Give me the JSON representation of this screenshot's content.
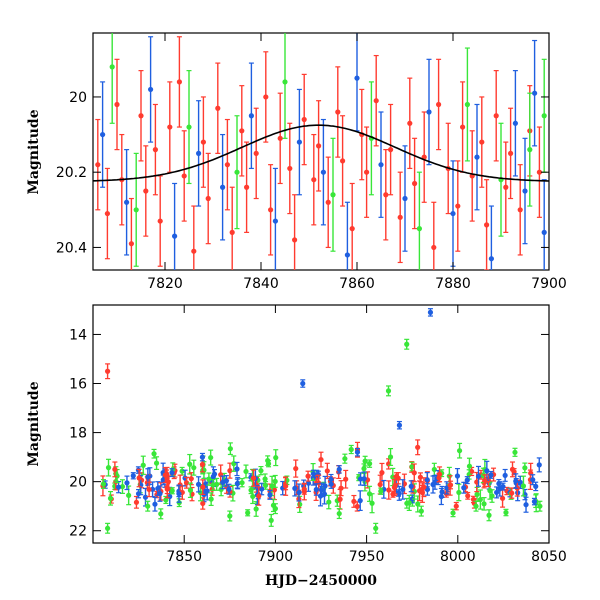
{
  "chart_data": [
    {
      "type": "scatter",
      "panel": "top",
      "xlabel": "",
      "ylabel": "Magnitude",
      "xlim": [
        7805,
        7900
      ],
      "ylim": [
        20.46,
        19.83
      ],
      "y_inverted": true,
      "x_ticks": [
        7820,
        7840,
        7860,
        7880,
        7900
      ],
      "x_tick_labels": [
        "7820",
        "7840",
        "7860",
        "7880",
        "7900"
      ],
      "y_ticks": [
        20.0,
        20.2,
        20.4
      ],
      "y_tick_labels": [
        "20",
        "20.2",
        "20.4"
      ],
      "colors": {
        "red": "#ff3b2f",
        "blue": "#1f5fe0",
        "green": "#39e639",
        "model": "#000000"
      },
      "model_curve": {
        "name": "",
        "type": "gaussian_dip",
        "baseline": 20.225,
        "peak_magnitude": 20.075,
        "peak_x": 7852,
        "sigma": 16
      },
      "series": [
        {
          "color": "red",
          "error_bar": 0.12,
          "points": [
            [
              7806,
              20.18
            ],
            [
              7808,
              20.31
            ],
            [
              7810,
              20.02
            ],
            [
              7811,
              20.22
            ],
            [
              7813,
              20.39
            ],
            [
              7815,
              20.05
            ],
            [
              7816,
              20.25
            ],
            [
              7818,
              20.14
            ],
            [
              7819,
              20.33
            ],
            [
              7821,
              20.08
            ],
            [
              7823,
              19.96
            ],
            [
              7824,
              20.21
            ],
            [
              7826,
              20.41
            ],
            [
              7828,
              20.12
            ],
            [
              7829,
              20.27
            ],
            [
              7831,
              20.03
            ],
            [
              7833,
              20.18
            ],
            [
              7834,
              20.36
            ],
            [
              7836,
              20.09
            ],
            [
              7837,
              20.24
            ],
            [
              7839,
              20.15
            ],
            [
              7841,
              20.0
            ],
            [
              7842,
              20.3
            ],
            [
              7844,
              20.11
            ],
            [
              7846,
              20.19
            ],
            [
              7847,
              20.38
            ],
            [
              7849,
              20.06
            ],
            [
              7851,
              20.22
            ],
            [
              7852,
              20.13
            ],
            [
              7854,
              20.28
            ],
            [
              7856,
              20.04
            ],
            [
              7857,
              20.17
            ],
            [
              7859,
              20.35
            ],
            [
              7861,
              20.1
            ],
            [
              7862,
              20.2
            ],
            [
              7864,
              20.01
            ],
            [
              7866,
              20.26
            ],
            [
              7867,
              20.14
            ],
            [
              7869,
              20.32
            ],
            [
              7871,
              20.07
            ],
            [
              7872,
              20.23
            ],
            [
              7874,
              20.16
            ],
            [
              7876,
              20.4
            ],
            [
              7877,
              20.02
            ],
            [
              7879,
              20.19
            ],
            [
              7881,
              20.29
            ],
            [
              7882,
              20.08
            ],
            [
              7884,
              20.21
            ],
            [
              7886,
              20.12
            ],
            [
              7887,
              20.34
            ],
            [
              7889,
              20.05
            ],
            [
              7891,
              20.24
            ],
            [
              7892,
              20.15
            ],
            [
              7894,
              20.3
            ],
            [
              7896,
              20.09
            ],
            [
              7898,
              20.2
            ]
          ]
        },
        {
          "color": "blue",
          "error_bar": 0.14,
          "points": [
            [
              7807,
              20.1
            ],
            [
              7812,
              20.28
            ],
            [
              7817,
              19.98
            ],
            [
              7822,
              20.37
            ],
            [
              7827,
              20.15
            ],
            [
              7832,
              20.24
            ],
            [
              7838,
              20.05
            ],
            [
              7843,
              20.33
            ],
            [
              7848,
              20.12
            ],
            [
              7853,
              20.2
            ],
            [
              7858,
              20.42
            ],
            [
              7860,
              19.95
            ],
            [
              7865,
              20.18
            ],
            [
              7870,
              20.27
            ],
            [
              7875,
              20.04
            ],
            [
              7880,
              20.31
            ],
            [
              7885,
              20.16
            ],
            [
              7888,
              20.43
            ],
            [
              7893,
              20.07
            ],
            [
              7895,
              20.25
            ],
            [
              7897,
              19.99
            ],
            [
              7899,
              20.36
            ]
          ]
        },
        {
          "color": "green",
          "error_bar": 0.15,
          "points": [
            [
              7809,
              19.92
            ],
            [
              7814,
              20.3
            ],
            [
              7825,
              20.08
            ],
            [
              7835,
              20.2
            ],
            [
              7845,
              19.96
            ],
            [
              7855,
              20.26
            ],
            [
              7863,
              20.11
            ],
            [
              7873,
              20.35
            ],
            [
              7883,
              20.02
            ],
            [
              7890,
              20.22
            ],
            [
              7896,
              20.14
            ],
            [
              7899,
              20.05
            ]
          ]
        }
      ]
    },
    {
      "type": "scatter",
      "panel": "bottom",
      "xlabel": "HJD−2450000",
      "ylabel": "Magnitude",
      "xlim": [
        7800,
        8050
      ],
      "ylim": [
        22.5,
        12.8
      ],
      "y_inverted": true,
      "x_ticks": [
        7850,
        7900,
        7950,
        8000,
        8050
      ],
      "x_tick_labels": [
        "7850",
        "7900",
        "7950",
        "8000",
        "8050"
      ],
      "y_ticks": [
        14,
        16,
        18,
        20,
        22
      ],
      "y_tick_labels": [
        "14",
        "16",
        "18",
        "20",
        "22"
      ],
      "baseline_band": {
        "x_start": 7805,
        "x_end": 8045,
        "center": 20.2,
        "spread": 0.55
      },
      "series": [
        {
          "color": "red",
          "error_bar": 0.3,
          "points": [
            [
              7808,
              15.5
            ],
            [
              7812,
              19.5
            ],
            [
              7925,
              19.1
            ],
            [
              7945,
              18.7
            ],
            [
              7978,
              18.6
            ],
            [
              8030,
              19.5
            ],
            [
              7860,
              19.3
            ],
            [
              7990,
              19.7
            ]
          ]
        },
        {
          "color": "blue",
          "error_bar": 0.15,
          "points": [
            [
              7860,
              19.0
            ],
            [
              7915,
              16.0
            ],
            [
              7945,
              18.8
            ],
            [
              7968,
              17.7
            ],
            [
              7985,
              13.1
            ],
            [
              7935,
              19.5
            ]
          ]
        },
        {
          "color": "green",
          "error_bar": 0.2,
          "points": [
            [
              7808,
              21.9
            ],
            [
              7875,
              21.4
            ],
            [
              7962,
              16.3
            ],
            [
              7972,
              14.4
            ],
            [
              7900,
              21.1
            ],
            [
              7955,
              21.9
            ],
            [
              7980,
              21.2
            ],
            [
              8010,
              21.0
            ],
            [
              7830,
              21.0
            ],
            [
              7935,
              21.3
            ],
            [
              8045,
              21.0
            ]
          ]
        }
      ]
    }
  ]
}
